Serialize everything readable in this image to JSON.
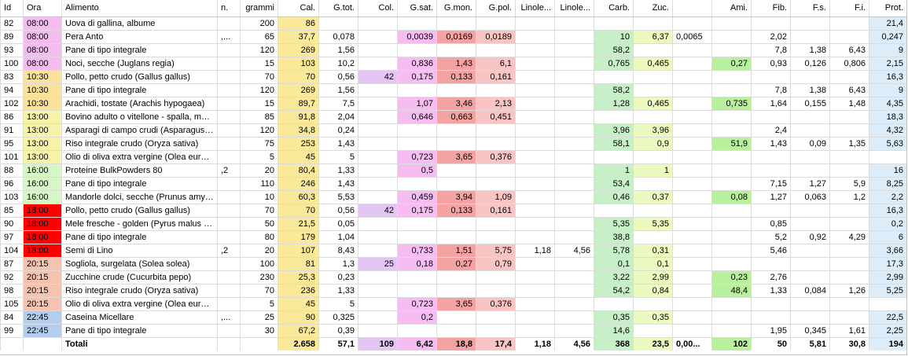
{
  "columns": [
    {
      "key": "id",
      "label": "Id",
      "w": 29,
      "align": "l"
    },
    {
      "key": "ora",
      "label": "Ora",
      "w": 49,
      "align": "l"
    },
    {
      "key": "alimento",
      "label": "Alimento",
      "w": 198,
      "align": "l"
    },
    {
      "key": "n",
      "label": "n.",
      "w": 29,
      "align": "l"
    },
    {
      "key": "grammi",
      "label": "grammi",
      "w": 48,
      "align": "r"
    },
    {
      "key": "cal",
      "label": "Cal.",
      "w": 52,
      "align": "r"
    },
    {
      "key": "gtot",
      "label": "G.tot.",
      "w": 50,
      "align": "r"
    },
    {
      "key": "col",
      "label": "Col.",
      "w": 50,
      "align": "r"
    },
    {
      "key": "gsat",
      "label": "G.sat.",
      "w": 50,
      "align": "r"
    },
    {
      "key": "gmon",
      "label": "G.mon.",
      "w": 50,
      "align": "r"
    },
    {
      "key": "gpol",
      "label": "G.pol.",
      "w": 50,
      "align": "r"
    },
    {
      "key": "linole1",
      "label": "Linole...",
      "w": 50,
      "align": "r"
    },
    {
      "key": "linole2",
      "label": "Linole...",
      "w": 50,
      "align": "r"
    },
    {
      "key": "carb",
      "label": "Carb.",
      "w": 50,
      "align": "r"
    },
    {
      "key": "zuc",
      "label": "Zuc.",
      "w": 50,
      "align": "r"
    },
    {
      "key": "blank",
      "label": "",
      "w": 50,
      "align": "l"
    },
    {
      "key": "ami",
      "label": "Ami.",
      "w": 50,
      "align": "r"
    },
    {
      "key": "fib",
      "label": "Fib.",
      "w": 50,
      "align": "r"
    },
    {
      "key": "fs",
      "label": "F.s.",
      "w": 50,
      "align": "r"
    },
    {
      "key": "fi",
      "label": "F.i.",
      "w": 50,
      "align": "r"
    },
    {
      "key": "prot",
      "label": "Prot.",
      "w": 48,
      "align": "r"
    }
  ],
  "column_colors": {
    "cal": "#fbe99b",
    "col": "#e4c6f5",
    "gsat": "#f6bdf2",
    "gmon": "#f4a2a2",
    "gpol": "#f8c4c4",
    "carb": "#c8f0c8",
    "zuc": "#ecfac0",
    "ami": "#b9f09e",
    "prot": "#dcedf9"
  },
  "time_colors": {
    "08:00": "#f5bcf2",
    "10:30": "#fbe29b",
    "13:00": "#f7f3a8",
    "16:00": "#d6f7c4",
    "18:00": "#ff0000",
    "20:15": "#f6c4ae",
    "22:45": "#b3cdef"
  },
  "rows": [
    {
      "id": "82",
      "ora": "08:00",
      "alimento": "Uova di gallina, albume",
      "n": "",
      "grammi": "200",
      "cal": "86",
      "gtot": "",
      "col": "",
      "gsat": "",
      "gmon": "",
      "gpol": "",
      "linole1": "",
      "linole2": "",
      "carb": "",
      "zuc": "",
      "blank": "",
      "ami": "",
      "fib": "",
      "fs": "",
      "fi": "",
      "prot": "21,4"
    },
    {
      "id": "89",
      "ora": "08:00",
      "alimento": "Pera Anto",
      "n": ",...",
      "grammi": "65",
      "cal": "37,7",
      "gtot": "0,078",
      "col": "",
      "gsat": "0,0039",
      "gmon": "0,0169",
      "gpol": "0,0189",
      "linole1": "",
      "linole2": "",
      "carb": "10",
      "zuc": "6,37",
      "blank": "0,0065",
      "ami": "",
      "fib": "2,02",
      "fs": "",
      "fi": "",
      "prot": "0,247"
    },
    {
      "id": "93",
      "ora": "08:00",
      "alimento": "Pane di tipo integrale",
      "n": "",
      "grammi": "120",
      "cal": "269",
      "gtot": "1,56",
      "col": "",
      "gsat": "",
      "gmon": "",
      "gpol": "",
      "linole1": "",
      "linole2": "",
      "carb": "58,2",
      "zuc": "",
      "blank": "",
      "ami": "",
      "fib": "7,8",
      "fs": "1,38",
      "fi": "6,43",
      "prot": "9"
    },
    {
      "id": "100",
      "ora": "08:00",
      "alimento": "Noci, secche (Juglans regia)",
      "n": "",
      "grammi": "15",
      "cal": "103",
      "gtot": "10,2",
      "col": "",
      "gsat": "0,836",
      "gmon": "1,43",
      "gpol": "6,1",
      "linole1": "",
      "linole2": "",
      "carb": "0,765",
      "zuc": "0,465",
      "blank": "",
      "ami": "0,27",
      "fib": "0,93",
      "fs": "0,126",
      "fi": "0,806",
      "prot": "2,15"
    },
    {
      "id": "83",
      "ora": "10:30",
      "alimento": "Pollo, petto crudo (Gallus gallus)",
      "n": "",
      "grammi": "70",
      "cal": "70",
      "gtot": "0,56",
      "col": "42",
      "gsat": "0,175",
      "gmon": "0,133",
      "gpol": "0,161",
      "linole1": "",
      "linole2": "",
      "carb": "",
      "zuc": "",
      "blank": "",
      "ami": "",
      "fib": "",
      "fs": "",
      "fi": "",
      "prot": "16,3"
    },
    {
      "id": "94",
      "ora": "10:30",
      "alimento": "Pane di tipo integrale",
      "n": "",
      "grammi": "120",
      "cal": "269",
      "gtot": "1,56",
      "col": "",
      "gsat": "",
      "gmon": "",
      "gpol": "",
      "linole1": "",
      "linole2": "",
      "carb": "58,2",
      "zuc": "",
      "blank": "",
      "ami": "",
      "fib": "7,8",
      "fs": "1,38",
      "fi": "6,43",
      "prot": "9"
    },
    {
      "id": "102",
      "ora": "10:30",
      "alimento": "Arachidi, tostate  (Arachis hypogaea)",
      "n": "",
      "grammi": "15",
      "cal": "89,7",
      "gtot": "7,5",
      "col": "",
      "gsat": "1,07",
      "gmon": "3,46",
      "gpol": "2,13",
      "linole1": "",
      "linole2": "",
      "carb": "1,28",
      "zuc": "0,465",
      "blank": "",
      "ami": "0,735",
      "fib": "1,64",
      "fs": "0,155",
      "fi": "1,48",
      "prot": "4,35"
    },
    {
      "id": "86",
      "ora": "13:00",
      "alimento": "Bovino adulto o vitellone - spalla, muscolo",
      "n": "",
      "grammi": "85",
      "cal": "91,8",
      "gtot": "2,04",
      "col": "",
      "gsat": "0,646",
      "gmon": "0,663",
      "gpol": "0,451",
      "linole1": "",
      "linole2": "",
      "carb": "",
      "zuc": "",
      "blank": "",
      "ami": "",
      "fib": "",
      "fs": "",
      "fi": "",
      "prot": "18,3"
    },
    {
      "id": "91",
      "ora": "13:00",
      "alimento": "Asparagi di campo crudi (Asparagus officinalis)",
      "n": "",
      "grammi": "120",
      "cal": "34,8",
      "gtot": "0,24",
      "col": "",
      "gsat": "",
      "gmon": "",
      "gpol": "",
      "linole1": "",
      "linole2": "",
      "carb": "3,96",
      "zuc": "3,96",
      "blank": "",
      "ami": "",
      "fib": "2,4",
      "fs": "",
      "fi": "",
      "prot": "4,32"
    },
    {
      "id": "95",
      "ora": "13:00",
      "alimento": "Riso integrale crudo (Oryza sativa)",
      "n": "",
      "grammi": "75",
      "cal": "253",
      "gtot": "1,43",
      "col": "",
      "gsat": "",
      "gmon": "",
      "gpol": "",
      "linole1": "",
      "linole2": "",
      "carb": "58,1",
      "zuc": "0,9",
      "blank": "",
      "ami": "51,9",
      "fib": "1,43",
      "fs": "0,09",
      "fi": "1,35",
      "prot": "5,63"
    },
    {
      "id": "101",
      "ora": "13:00",
      "alimento": "Olio di oliva extra vergine (Olea europaea)",
      "n": "",
      "grammi": "5",
      "cal": "45",
      "gtot": "5",
      "col": "",
      "gsat": "0,723",
      "gmon": "3,65",
      "gpol": "0,376",
      "linole1": "",
      "linole2": "",
      "carb": "",
      "zuc": "",
      "blank": "",
      "ami": "",
      "fib": "",
      "fs": "",
      "fi": "",
      "prot": ""
    },
    {
      "id": "88",
      "ora": "16:00",
      "alimento": "Proteine BulkPowders 80",
      "n": ",2",
      "grammi": "20",
      "cal": "80,4",
      "gtot": "1,33",
      "col": "",
      "gsat": "0,5",
      "gmon": "",
      "gpol": "",
      "linole1": "",
      "linole2": "",
      "carb": "1",
      "zuc": "1",
      "blank": "",
      "ami": "",
      "fib": "",
      "fs": "",
      "fi": "",
      "prot": "16"
    },
    {
      "id": "96",
      "ora": "16:00",
      "alimento": "Pane di tipo integrale",
      "n": "",
      "grammi": "110",
      "cal": "246",
      "gtot": "1,43",
      "col": "",
      "gsat": "",
      "gmon": "",
      "gpol": "",
      "linole1": "",
      "linole2": "",
      "carb": "53,4",
      "zuc": "",
      "blank": "",
      "ami": "",
      "fib": "7,15",
      "fs": "1,27",
      "fi": "5,9",
      "prot": "8,25"
    },
    {
      "id": "103",
      "ora": "16:00",
      "alimento": "Mandorle dolci, secche  (Prunus amygdalus)",
      "n": "",
      "grammi": "10",
      "cal": "60,3",
      "gtot": "5,53",
      "col": "",
      "gsat": "0,459",
      "gmon": "3,94",
      "gpol": "1,09",
      "linole1": "",
      "linole2": "",
      "carb": "0,46",
      "zuc": "0,37",
      "blank": "",
      "ami": "0,08",
      "fib": "1,27",
      "fs": "0,063",
      "fi": "1,2",
      "prot": "2,2"
    },
    {
      "id": "85",
      "ora": "18:00",
      "alimento": "Pollo, petto crudo (Gallus gallus)",
      "n": "",
      "grammi": "70",
      "cal": "70",
      "gtot": "0,56",
      "col": "42",
      "gsat": "0,175",
      "gmon": "0,133",
      "gpol": "0,161",
      "linole1": "",
      "linole2": "",
      "carb": "",
      "zuc": "",
      "blank": "",
      "ami": "",
      "fib": "",
      "fs": "",
      "fi": "",
      "prot": "16,3"
    },
    {
      "id": "90",
      "ora": "18:00",
      "alimento": "Mele fresche - golden (Pyrus malus (Malus))",
      "n": "",
      "grammi": "50",
      "cal": "21,5",
      "gtot": "0,05",
      "col": "",
      "gsat": "",
      "gmon": "",
      "gpol": "",
      "linole1": "",
      "linole2": "",
      "carb": "5,35",
      "zuc": "5,35",
      "blank": "",
      "ami": "",
      "fib": "0,85",
      "fs": "",
      "fi": "",
      "prot": "0,2"
    },
    {
      "id": "97",
      "ora": "18:00",
      "alimento": "Pane di tipo integrale",
      "n": "",
      "grammi": "80",
      "cal": "179",
      "gtot": "1,04",
      "col": "",
      "gsat": "",
      "gmon": "",
      "gpol": "",
      "linole1": "",
      "linole2": "",
      "carb": "38,8",
      "zuc": "",
      "blank": "",
      "ami": "",
      "fib": "5,2",
      "fs": "0,92",
      "fi": "4,29",
      "prot": "6"
    },
    {
      "id": "104",
      "ora": "18:00",
      "alimento": "Semi di Lino",
      "n": ",2",
      "grammi": "20",
      "cal": "107",
      "gtot": "8,43",
      "col": "",
      "gsat": "0,733",
      "gmon": "1,51",
      "gpol": "5,75",
      "linole1": "1,18",
      "linole2": "4,56",
      "carb": "5,78",
      "zuc": "0,31",
      "blank": "",
      "ami": "",
      "fib": "5,46",
      "fs": "",
      "fi": "",
      "prot": "3,66"
    },
    {
      "id": "87",
      "ora": "20:15",
      "alimento": "Sogliola, surgelata (Solea solea)",
      "n": "",
      "grammi": "100",
      "cal": "81",
      "gtot": "1,3",
      "col": "25",
      "gsat": "0,18",
      "gmon": "0,27",
      "gpol": "0,79",
      "linole1": "",
      "linole2": "",
      "carb": "0,1",
      "zuc": "0,1",
      "blank": "",
      "ami": "",
      "fib": "",
      "fs": "",
      "fi": "",
      "prot": "17,3"
    },
    {
      "id": "92",
      "ora": "20:15",
      "alimento": "Zucchine crude (Cucurbita pepo)",
      "n": "",
      "grammi": "230",
      "cal": "25,3",
      "gtot": "0,23",
      "col": "",
      "gsat": "",
      "gmon": "",
      "gpol": "",
      "linole1": "",
      "linole2": "",
      "carb": "3,22",
      "zuc": "2,99",
      "blank": "",
      "ami": "0,23",
      "fib": "2,76",
      "fs": "",
      "fi": "",
      "prot": "2,99"
    },
    {
      "id": "98",
      "ora": "20:15",
      "alimento": "Riso integrale crudo (Oryza sativa)",
      "n": "",
      "grammi": "70",
      "cal": "236",
      "gtot": "1,33",
      "col": "",
      "gsat": "",
      "gmon": "",
      "gpol": "",
      "linole1": "",
      "linole2": "",
      "carb": "54,2",
      "zuc": "0,84",
      "blank": "",
      "ami": "48,4",
      "fib": "1,33",
      "fs": "0,084",
      "fi": "1,26",
      "prot": "5,25"
    },
    {
      "id": "105",
      "ora": "20:15",
      "alimento": "Olio di oliva extra vergine (Olea europaea)",
      "n": "",
      "grammi": "5",
      "cal": "45",
      "gtot": "5",
      "col": "",
      "gsat": "0,723",
      "gmon": "3,65",
      "gpol": "0,376",
      "linole1": "",
      "linole2": "",
      "carb": "",
      "zuc": "",
      "blank": "",
      "ami": "",
      "fib": "",
      "fs": "",
      "fi": "",
      "prot": ""
    },
    {
      "id": "84",
      "ora": "22:45",
      "alimento": "Caseina Micellare",
      "n": ",...",
      "grammi": "25",
      "cal": "90",
      "gtot": "0,325",
      "col": "",
      "gsat": "0,2",
      "gmon": "",
      "gpol": "",
      "linole1": "",
      "linole2": "",
      "carb": "0,35",
      "zuc": "0,35",
      "blank": "",
      "ami": "",
      "fib": "",
      "fs": "",
      "fi": "",
      "prot": "22,5"
    },
    {
      "id": "99",
      "ora": "22:45",
      "alimento": "Pane di tipo integrale",
      "n": "",
      "grammi": "30",
      "cal": "67,2",
      "gtot": "0,39",
      "col": "",
      "gsat": "",
      "gmon": "",
      "gpol": "",
      "linole1": "",
      "linole2": "",
      "carb": "14,6",
      "zuc": "",
      "blank": "",
      "ami": "",
      "fib": "1,95",
      "fs": "0,345",
      "fi": "1,61",
      "prot": "2,25"
    }
  ],
  "totals": {
    "id": "",
    "ora": "",
    "alimento": "Totali",
    "n": "",
    "grammi": "",
    "cal": "2.658",
    "gtot": "57,1",
    "col": "109",
    "gsat": "6,42",
    "gmon": "18,8",
    "gpol": "17,4",
    "linole1": "1,18",
    "linole2": "4,56",
    "carb": "368",
    "zuc": "23,5",
    "blank": "0,00...",
    "ami": "102",
    "fib": "50",
    "fs": "5,81",
    "fi": "30,8",
    "prot": "194"
  }
}
